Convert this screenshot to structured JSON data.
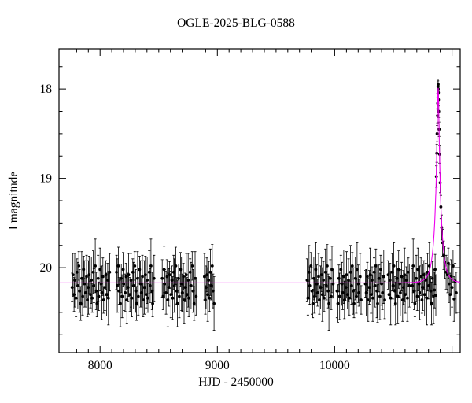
{
  "page": {
    "background": "#ffffff"
  },
  "chart_data": {
    "type": "scatter",
    "title": "OGLE-2025-BLG-0588",
    "xlabel": "HJD - 2450000",
    "ylabel": "I magnitude",
    "x_range": [
      7650,
      11070
    ],
    "y_range_mag": [
      17.55,
      20.95
    ],
    "y_axis_inverted": true,
    "grid": false,
    "legend": null,
    "x_major_ticks": [
      8000,
      9000,
      10000,
      11000
    ],
    "x_minor_step": 100,
    "x_tick_labels": [
      {
        "value": 8000,
        "label": "8000"
      },
      {
        "value": 9000,
        "label": "9000"
      },
      {
        "value": 10000,
        "label": "10000"
      }
    ],
    "y_major_ticks": [
      18,
      19,
      20
    ],
    "y_minor_step": 0.25,
    "y_tick_labels": [
      {
        "value": 18,
        "label": "18"
      },
      {
        "value": 19,
        "label": "19"
      },
      {
        "value": 20,
        "label": "20"
      }
    ],
    "marker": {
      "shape": "circle",
      "color": "#000000"
    },
    "model_curve": {
      "model": "point-lens-microlensing",
      "color": "#ee00ee",
      "baseline_mag": 20.17,
      "t0": 10882,
      "tE": 50,
      "u0": 0.135,
      "peak_mag": 17.99
    },
    "points_format": [
      "hjd_minus_2450000",
      "i_mag",
      "error"
    ],
    "points": [
      [
        7762,
        20.22,
        0.16
      ],
      [
        7769,
        20.08,
        0.24
      ],
      [
        7778,
        20.3,
        0.19
      ],
      [
        7784,
        20.14,
        0.3
      ],
      [
        7795,
        20.34,
        0.21
      ],
      [
        7803,
        20.05,
        0.15
      ],
      [
        7810,
        20.2,
        0.26
      ],
      [
        7819,
        19.98,
        0.16
      ],
      [
        7825,
        20.26,
        0.24
      ],
      [
        7836,
        20.4,
        0.19
      ],
      [
        7844,
        20.12,
        0.3
      ],
      [
        7851,
        20.32,
        0.21
      ],
      [
        7860,
        20.02,
        0.15
      ],
      [
        7866,
        20.18,
        0.26
      ],
      [
        7877,
        20.28,
        0.16
      ],
      [
        7885,
        20.1,
        0.24
      ],
      [
        7892,
        20.36,
        0.19
      ],
      [
        7901,
        20.22,
        0.3
      ],
      [
        7907,
        20.08,
        0.21
      ],
      [
        7918,
        20.3,
        0.15
      ],
      [
        7926,
        20.14,
        0.26
      ],
      [
        7933,
        20.34,
        0.16
      ],
      [
        7942,
        20.05,
        0.24
      ],
      [
        7948,
        20.2,
        0.19
      ],
      [
        7959,
        19.98,
        0.3
      ],
      [
        7967,
        20.26,
        0.21
      ],
      [
        7974,
        20.4,
        0.15
      ],
      [
        7983,
        20.12,
        0.26
      ],
      [
        7989,
        20.32,
        0.16
      ],
      [
        8000,
        20.02,
        0.24
      ],
      [
        8008,
        20.18,
        0.19
      ],
      [
        8015,
        20.28,
        0.3
      ],
      [
        8024,
        20.1,
        0.21
      ],
      [
        8030,
        20.36,
        0.15
      ],
      [
        8041,
        20.22,
        0.26
      ],
      [
        8049,
        20.08,
        0.16
      ],
      [
        8056,
        20.3,
        0.24
      ],
      [
        8065,
        20.14,
        0.19
      ],
      [
        8071,
        20.34,
        0.3
      ],
      [
        8082,
        20.05,
        0.21
      ],
      [
        8140,
        20.05,
        0.19
      ],
      [
        8147,
        20.2,
        0.3
      ],
      [
        8156,
        19.98,
        0.21
      ],
      [
        8162,
        20.26,
        0.15
      ],
      [
        8173,
        20.4,
        0.26
      ],
      [
        8181,
        20.12,
        0.16
      ],
      [
        8188,
        20.32,
        0.24
      ],
      [
        8197,
        20.02,
        0.19
      ],
      [
        8203,
        20.18,
        0.3
      ],
      [
        8214,
        20.28,
        0.21
      ],
      [
        8222,
        20.1,
        0.15
      ],
      [
        8229,
        20.36,
        0.26
      ],
      [
        8238,
        20.22,
        0.16
      ],
      [
        8244,
        20.08,
        0.24
      ],
      [
        8255,
        20.3,
        0.19
      ],
      [
        8263,
        20.14,
        0.3
      ],
      [
        8270,
        20.34,
        0.21
      ],
      [
        8279,
        20.05,
        0.15
      ],
      [
        8285,
        20.2,
        0.26
      ],
      [
        8296,
        19.98,
        0.16
      ],
      [
        8304,
        20.26,
        0.24
      ],
      [
        8311,
        20.4,
        0.19
      ],
      [
        8320,
        20.12,
        0.3
      ],
      [
        8326,
        20.32,
        0.21
      ],
      [
        8337,
        20.02,
        0.15
      ],
      [
        8345,
        20.18,
        0.26
      ],
      [
        8352,
        20.28,
        0.16
      ],
      [
        8361,
        20.1,
        0.24
      ],
      [
        8367,
        20.36,
        0.19
      ],
      [
        8378,
        20.22,
        0.3
      ],
      [
        8386,
        20.08,
        0.21
      ],
      [
        8393,
        20.3,
        0.15
      ],
      [
        8402,
        20.14,
        0.26
      ],
      [
        8408,
        20.34,
        0.16
      ],
      [
        8419,
        20.05,
        0.24
      ],
      [
        8427,
        20.2,
        0.19
      ],
      [
        8434,
        19.98,
        0.3
      ],
      [
        8443,
        20.26,
        0.21
      ],
      [
        8449,
        20.4,
        0.15
      ],
      [
        8460,
        20.12,
        0.26
      ],
      [
        8530,
        20.12,
        0.21
      ],
      [
        8537,
        20.32,
        0.15
      ],
      [
        8546,
        20.02,
        0.26
      ],
      [
        8552,
        20.18,
        0.16
      ],
      [
        8563,
        20.28,
        0.24
      ],
      [
        8571,
        20.1,
        0.19
      ],
      [
        8578,
        20.36,
        0.3
      ],
      [
        8587,
        20.22,
        0.21
      ],
      [
        8593,
        20.08,
        0.15
      ],
      [
        8604,
        20.3,
        0.26
      ],
      [
        8612,
        20.14,
        0.16
      ],
      [
        8619,
        20.34,
        0.24
      ],
      [
        8628,
        20.05,
        0.19
      ],
      [
        8634,
        20.2,
        0.3
      ],
      [
        8645,
        19.98,
        0.21
      ],
      [
        8653,
        20.26,
        0.15
      ],
      [
        8660,
        20.4,
        0.26
      ],
      [
        8669,
        20.12,
        0.16
      ],
      [
        8675,
        20.32,
        0.24
      ],
      [
        8686,
        20.02,
        0.19
      ],
      [
        8694,
        20.18,
        0.3
      ],
      [
        8701,
        20.28,
        0.21
      ],
      [
        8710,
        20.1,
        0.15
      ],
      [
        8716,
        20.36,
        0.26
      ],
      [
        8727,
        20.22,
        0.16
      ],
      [
        8735,
        20.08,
        0.24
      ],
      [
        8742,
        20.3,
        0.19
      ],
      [
        8751,
        20.14,
        0.3
      ],
      [
        8757,
        20.34,
        0.21
      ],
      [
        8768,
        20.05,
        0.15
      ],
      [
        8776,
        20.2,
        0.26
      ],
      [
        8785,
        19.98,
        0.16
      ],
      [
        8793,
        20.26,
        0.24
      ],
      [
        8802,
        20.4,
        0.19
      ],
      [
        8810,
        20.12,
        0.3
      ],
      [
        8819,
        20.32,
        0.21
      ],
      [
        8890,
        20.1,
        0.26
      ],
      [
        8897,
        20.36,
        0.16
      ],
      [
        8904,
        20.22,
        0.24
      ],
      [
        8911,
        20.08,
        0.19
      ],
      [
        8918,
        20.3,
        0.3
      ],
      [
        8926,
        20.14,
        0.21
      ],
      [
        8933,
        20.34,
        0.15
      ],
      [
        8940,
        20.05,
        0.26
      ],
      [
        8948,
        20.2,
        0.16
      ],
      [
        8956,
        19.98,
        0.24
      ],
      [
        8964,
        20.26,
        0.19
      ],
      [
        8972,
        20.4,
        0.3
      ],
      [
        9765,
        20.14,
        0.24
      ],
      [
        9772,
        20.34,
        0.19
      ],
      [
        9781,
        20.05,
        0.3
      ],
      [
        9787,
        20.2,
        0.21
      ],
      [
        9798,
        19.98,
        0.15
      ],
      [
        9806,
        20.26,
        0.26
      ],
      [
        9813,
        20.4,
        0.16
      ],
      [
        9822,
        20.12,
        0.24
      ],
      [
        9828,
        20.32,
        0.19
      ],
      [
        9839,
        20.02,
        0.3
      ],
      [
        9847,
        20.18,
        0.21
      ],
      [
        9854,
        20.28,
        0.15
      ],
      [
        9863,
        20.1,
        0.26
      ],
      [
        9869,
        20.36,
        0.16
      ],
      [
        9880,
        20.22,
        0.24
      ],
      [
        9888,
        20.08,
        0.19
      ],
      [
        9895,
        20.3,
        0.3
      ],
      [
        9904,
        20.14,
        0.21
      ],
      [
        9910,
        20.34,
        0.15
      ],
      [
        9921,
        20.05,
        0.26
      ],
      [
        9929,
        20.2,
        0.16
      ],
      [
        9936,
        19.98,
        0.24
      ],
      [
        9945,
        20.26,
        0.19
      ],
      [
        9951,
        20.4,
        0.3
      ],
      [
        9962,
        20.12,
        0.21
      ],
      [
        9970,
        20.32,
        0.15
      ],
      [
        9977,
        20.02,
        0.26
      ],
      [
        9986,
        20.18,
        0.16
      ],
      [
        10020,
        20.26,
        0.3
      ],
      [
        10027,
        20.4,
        0.21
      ],
      [
        10036,
        20.12,
        0.15
      ],
      [
        10042,
        20.32,
        0.26
      ],
      [
        10053,
        20.02,
        0.16
      ],
      [
        10061,
        20.18,
        0.24
      ],
      [
        10068,
        20.28,
        0.19
      ],
      [
        10077,
        20.1,
        0.3
      ],
      [
        10083,
        20.36,
        0.21
      ],
      [
        10094,
        20.22,
        0.15
      ],
      [
        10102,
        20.08,
        0.26
      ],
      [
        10109,
        20.3,
        0.16
      ],
      [
        10118,
        20.14,
        0.24
      ],
      [
        10124,
        20.34,
        0.19
      ],
      [
        10135,
        20.05,
        0.3
      ],
      [
        10143,
        20.2,
        0.21
      ],
      [
        10150,
        19.98,
        0.15
      ],
      [
        10159,
        20.26,
        0.26
      ],
      [
        10165,
        20.4,
        0.16
      ],
      [
        10176,
        20.12,
        0.24
      ],
      [
        10184,
        20.32,
        0.19
      ],
      [
        10191,
        20.02,
        0.3
      ],
      [
        10200,
        20.18,
        0.21
      ],
      [
        10206,
        20.28,
        0.15
      ],
      [
        10217,
        20.1,
        0.26
      ],
      [
        10225,
        20.36,
        0.16
      ],
      [
        10262,
        20.18,
        0.15
      ],
      [
        10269,
        20.28,
        0.26
      ],
      [
        10278,
        20.1,
        0.16
      ],
      [
        10284,
        20.36,
        0.24
      ],
      [
        10295,
        20.22,
        0.19
      ],
      [
        10303,
        20.08,
        0.3
      ],
      [
        10310,
        20.3,
        0.21
      ],
      [
        10319,
        20.14,
        0.15
      ],
      [
        10325,
        20.34,
        0.26
      ],
      [
        10336,
        20.05,
        0.16
      ],
      [
        10344,
        20.2,
        0.24
      ],
      [
        10351,
        19.98,
        0.19
      ],
      [
        10360,
        20.26,
        0.3
      ],
      [
        10366,
        20.4,
        0.21
      ],
      [
        10377,
        20.12,
        0.15
      ],
      [
        10385,
        20.32,
        0.26
      ],
      [
        10392,
        20.02,
        0.16
      ],
      [
        10401,
        20.18,
        0.24
      ],
      [
        10407,
        20.28,
        0.19
      ],
      [
        10418,
        20.1,
        0.3
      ],
      [
        10426,
        20.36,
        0.21
      ],
      [
        10456,
        20.08,
        0.16
      ],
      [
        10463,
        20.3,
        0.24
      ],
      [
        10472,
        20.14,
        0.19
      ],
      [
        10478,
        20.34,
        0.3
      ],
      [
        10489,
        20.05,
        0.21
      ],
      [
        10497,
        20.2,
        0.15
      ],
      [
        10504,
        19.98,
        0.26
      ],
      [
        10513,
        20.26,
        0.16
      ],
      [
        10519,
        20.4,
        0.24
      ],
      [
        10530,
        20.12,
        0.19
      ],
      [
        10538,
        20.32,
        0.3
      ],
      [
        10545,
        20.02,
        0.21
      ],
      [
        10554,
        20.18,
        0.15
      ],
      [
        10560,
        20.28,
        0.26
      ],
      [
        10571,
        20.1,
        0.16
      ],
      [
        10579,
        20.36,
        0.24
      ],
      [
        10586,
        20.22,
        0.19
      ],
      [
        10595,
        20.08,
        0.3
      ],
      [
        10601,
        20.3,
        0.21
      ],
      [
        10612,
        20.14,
        0.15
      ],
      [
        10620,
        20.34,
        0.26
      ],
      [
        10627,
        20.05,
        0.16
      ],
      [
        10636,
        20.2,
        0.24
      ],
      [
        10662,
        20.2,
        0.19
      ],
      [
        10669,
        19.98,
        0.3
      ],
      [
        10678,
        20.26,
        0.21
      ],
      [
        10684,
        20.4,
        0.15
      ],
      [
        10695,
        20.12,
        0.26
      ],
      [
        10703,
        20.32,
        0.16
      ],
      [
        10710,
        20.02,
        0.24
      ],
      [
        10719,
        20.18,
        0.19
      ],
      [
        10725,
        20.28,
        0.3
      ],
      [
        10736,
        20.1,
        0.21
      ],
      [
        10744,
        20.36,
        0.15
      ],
      [
        10751,
        20.22,
        0.26
      ],
      [
        10760,
        20.08,
        0.16
      ],
      [
        10766,
        20.3,
        0.24
      ],
      [
        10777,
        20.14,
        0.19
      ],
      [
        10785,
        20.34,
        0.3
      ],
      [
        10792,
        20.05,
        0.21
      ],
      [
        10801,
        20.2,
        0.15
      ],
      [
        10807,
        19.98,
        0.26
      ],
      [
        10818,
        20.26,
        0.16
      ],
      [
        10826,
        20.4,
        0.24
      ],
      [
        10833,
        20.12,
        0.19
      ],
      [
        10842,
        20.32,
        0.3
      ],
      [
        10850,
        20.25,
        0.2
      ],
      [
        10856,
        20.02,
        0.17
      ],
      [
        10862,
        20.31,
        0.23
      ],
      [
        10867,
        18.98,
        0.12
      ],
      [
        10870,
        18.72,
        0.1
      ],
      [
        10873,
        18.5,
        0.09
      ],
      [
        10876,
        18.3,
        0.08
      ],
      [
        10878,
        18.16,
        0.07
      ],
      [
        10880,
        18.05,
        0.06
      ],
      [
        10881,
        17.97,
        0.06
      ],
      [
        10882,
        17.95,
        0.06
      ],
      [
        10883,
        18.0,
        0.06
      ],
      [
        10884,
        18.04,
        0.06
      ],
      [
        10885,
        18.12,
        0.07
      ],
      [
        10887,
        18.25,
        0.07
      ],
      [
        10890,
        18.45,
        0.08
      ],
      [
        10894,
        18.73,
        0.1
      ],
      [
        10899,
        19.05,
        0.11
      ],
      [
        10905,
        19.32,
        0.13
      ],
      [
        10912,
        19.55,
        0.14
      ],
      [
        10920,
        19.72,
        0.15
      ],
      [
        10929,
        19.86,
        0.16
      ],
      [
        10939,
        19.94,
        0.18
      ],
      [
        10950,
        20.05,
        0.19
      ],
      [
        10962,
        20.08,
        0.2
      ],
      [
        10969,
        19.95,
        0.17
      ],
      [
        10976,
        20.18,
        0.21
      ],
      [
        10984,
        20.3,
        0.24
      ],
      [
        10992,
        20.1,
        0.19
      ],
      [
        11000,
        20.22,
        0.22
      ],
      [
        11009,
        19.98,
        0.18
      ],
      [
        11018,
        20.35,
        0.25
      ],
      [
        11027,
        20.15,
        0.2
      ],
      [
        11036,
        20.28,
        0.23
      ]
    ]
  }
}
